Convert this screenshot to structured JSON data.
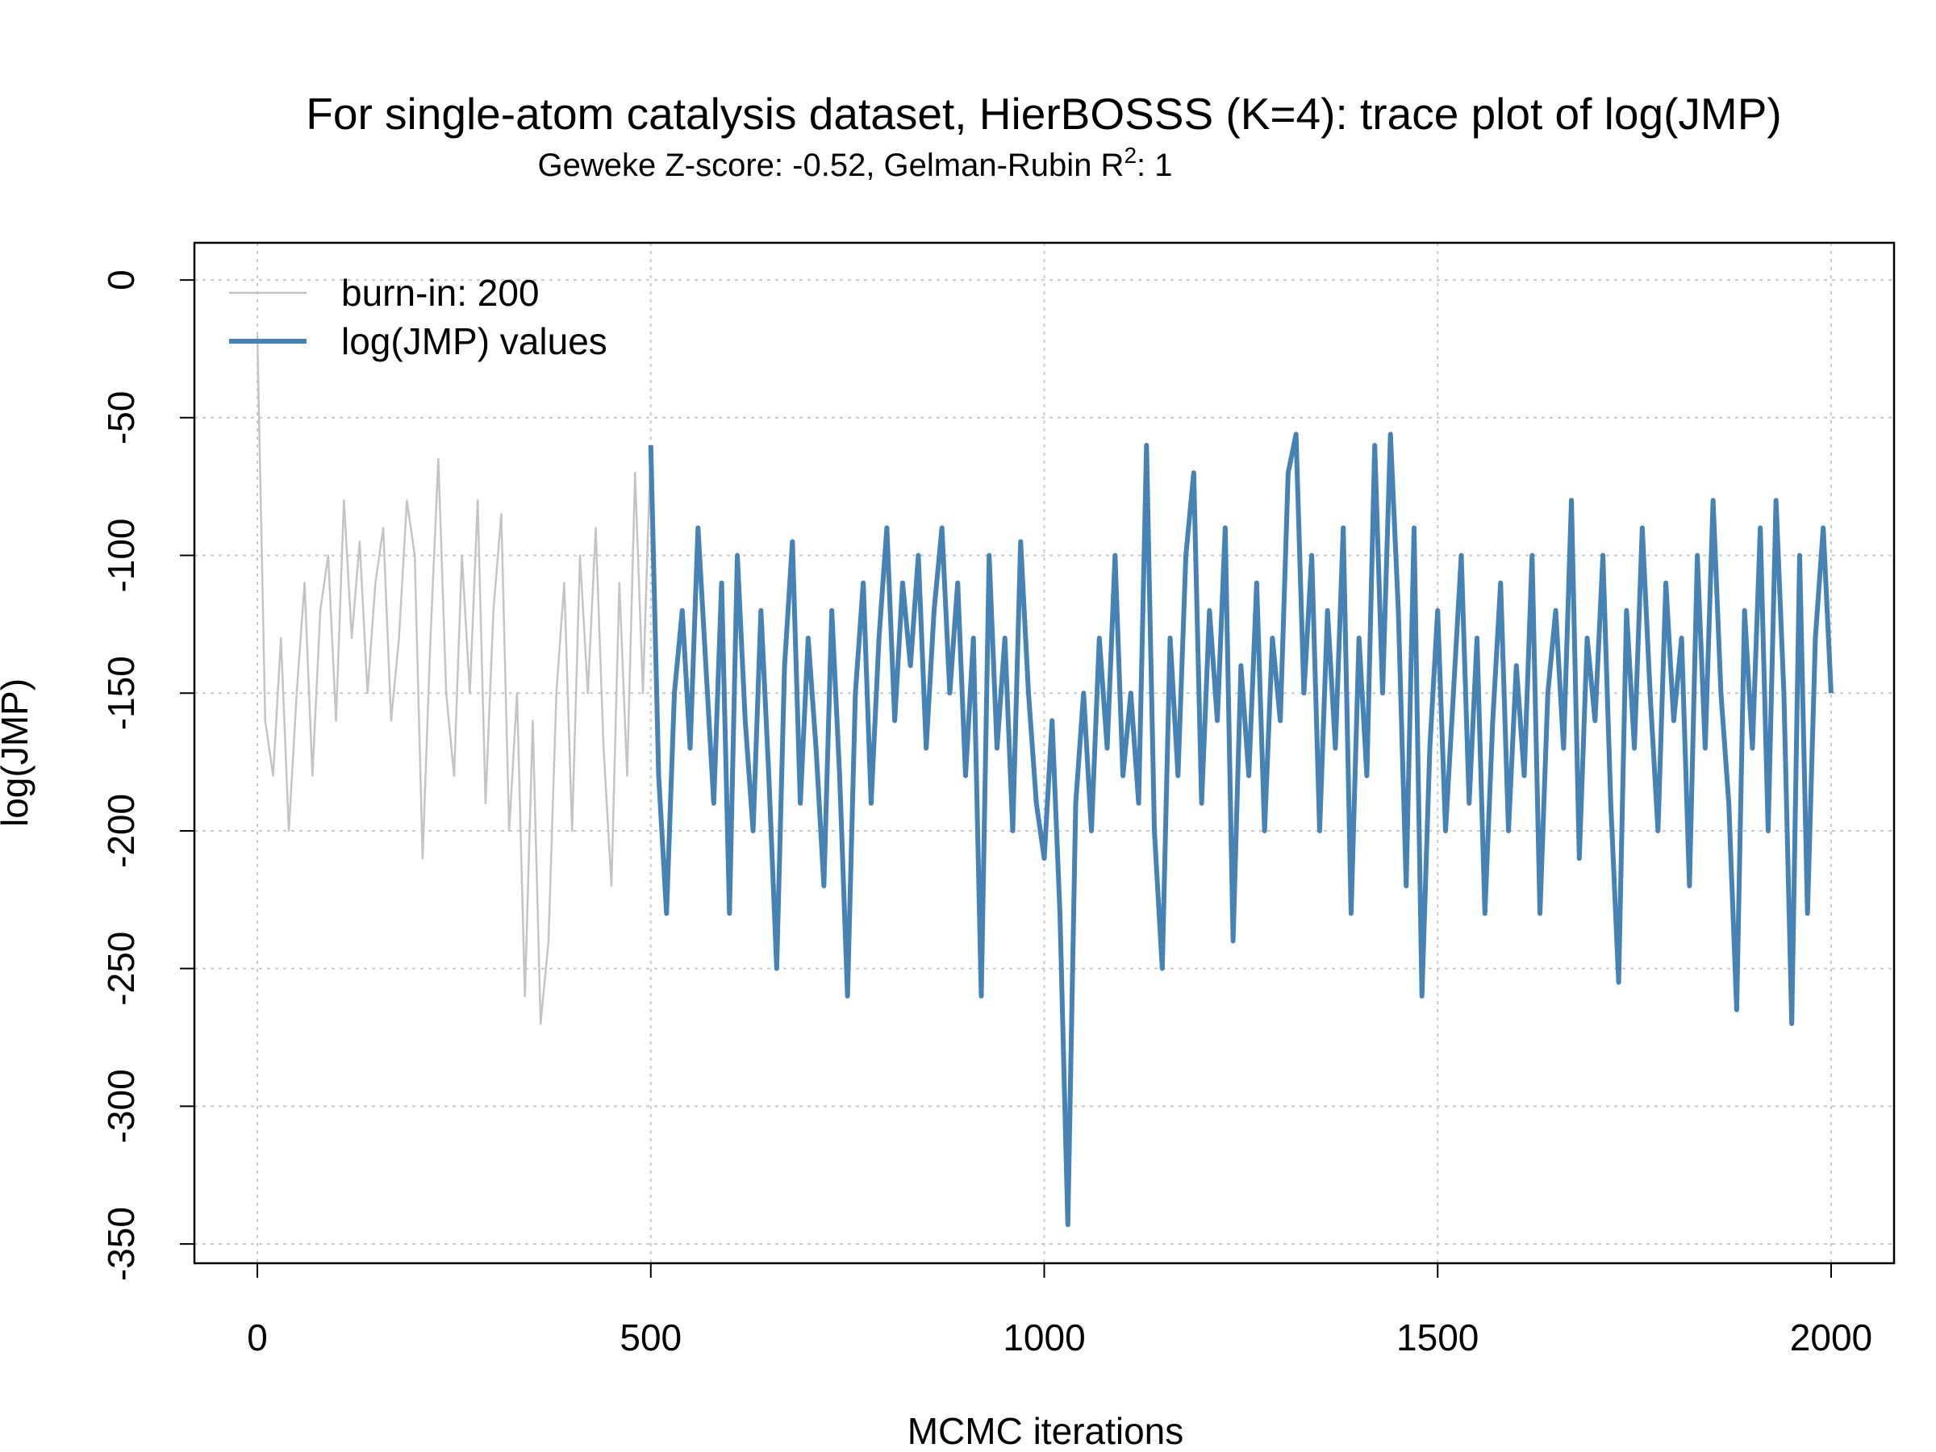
{
  "chart_data": {
    "type": "line",
    "title": "For single-atom catalysis dataset, HierBOSSS (K=4): trace plot of log(JMP)",
    "subtitle_parts": [
      "Geweke Z-score: -0.52,  Gelman-Rubin R",
      "2",
      ": 1"
    ],
    "x_label": "MCMC iterations",
    "y_label": "log(JMP)",
    "xlim": [
      -80,
      2080
    ],
    "ylim": [
      -357,
      13.5
    ],
    "xticks": [
      0,
      500,
      1000,
      1500,
      2000
    ],
    "yticks": [
      0,
      -50,
      -100,
      -150,
      -200,
      -250,
      -300,
      -350
    ],
    "grid": true,
    "legend": "top-left",
    "series": [
      {
        "name": "burn-in: 200",
        "color": "#c4c4c4",
        "x": [
          0,
          10,
          20,
          30,
          40,
          50,
          60,
          70,
          80,
          90,
          100,
          110,
          120,
          130,
          140,
          150,
          160,
          170,
          180,
          190,
          200,
          210,
          220,
          230,
          240,
          250,
          260,
          270,
          280,
          290,
          300,
          310,
          320,
          330,
          340,
          350,
          360,
          370,
          380,
          390,
          400,
          410,
          420,
          430,
          440,
          450,
          460,
          470,
          480,
          490,
          500
        ],
        "values": [
          -20,
          -160,
          -180,
          -130,
          -200,
          -150,
          -110,
          -180,
          -120,
          -100,
          -160,
          -80,
          -130,
          -95,
          -150,
          -110,
          -90,
          -160,
          -130,
          -80,
          -100,
          -210,
          -130,
          -65,
          -150,
          -180,
          -100,
          -150,
          -80,
          -190,
          -120,
          -85,
          -200,
          -150,
          -260,
          -160,
          -270,
          -240,
          -150,
          -110,
          -200,
          -100,
          -150,
          -90,
          -170,
          -220,
          -110,
          -180,
          -70,
          -150,
          -60
        ]
      },
      {
        "name": "log(JMP) values",
        "color": "#4682b4",
        "x": [
          500,
          510,
          520,
          530,
          540,
          550,
          560,
          570,
          580,
          590,
          600,
          610,
          620,
          630,
          640,
          650,
          660,
          670,
          680,
          690,
          700,
          710,
          720,
          730,
          740,
          750,
          760,
          770,
          780,
          790,
          800,
          810,
          820,
          830,
          840,
          850,
          860,
          870,
          880,
          890,
          900,
          910,
          920,
          930,
          940,
          950,
          960,
          970,
          980,
          990,
          1000,
          1010,
          1020,
          1030,
          1040,
          1050,
          1060,
          1070,
          1080,
          1090,
          1100,
          1110,
          1120,
          1130,
          1140,
          1150,
          1160,
          1170,
          1180,
          1190,
          1200,
          1210,
          1220,
          1230,
          1240,
          1250,
          1260,
          1270,
          1280,
          1290,
          1300,
          1310,
          1320,
          1330,
          1340,
          1350,
          1360,
          1370,
          1380,
          1390,
          1400,
          1410,
          1420,
          1430,
          1440,
          1450,
          1460,
          1470,
          1480,
          1490,
          1500,
          1510,
          1520,
          1530,
          1540,
          1550,
          1560,
          1570,
          1580,
          1590,
          1600,
          1610,
          1620,
          1630,
          1640,
          1650,
          1660,
          1670,
          1680,
          1690,
          1700,
          1710,
          1720,
          1730,
          1740,
          1750,
          1760,
          1770,
          1780,
          1790,
          1800,
          1810,
          1820,
          1830,
          1840,
          1850,
          1860,
          1870,
          1880,
          1890,
          1900,
          1910,
          1920,
          1930,
          1940,
          1950,
          1960,
          1970,
          1980,
          1990,
          2000
        ],
        "values": [
          -60,
          -180,
          -230,
          -150,
          -120,
          -170,
          -90,
          -140,
          -190,
          -110,
          -230,
          -100,
          -160,
          -200,
          -120,
          -180,
          -250,
          -140,
          -95,
          -190,
          -130,
          -170,
          -220,
          -120,
          -180,
          -260,
          -150,
          -110,
          -190,
          -130,
          -90,
          -160,
          -110,
          -140,
          -100,
          -170,
          -120,
          -90,
          -150,
          -110,
          -180,
          -130,
          -260,
          -100,
          -170,
          -130,
          -200,
          -95,
          -150,
          -190,
          -210,
          -160,
          -230,
          -343,
          -190,
          -150,
          -200,
          -130,
          -170,
          -100,
          -180,
          -150,
          -190,
          -60,
          -200,
          -250,
          -130,
          -180,
          -100,
          -70,
          -190,
          -120,
          -160,
          -90,
          -240,
          -140,
          -180,
          -110,
          -200,
          -130,
          -160,
          -70,
          -56,
          -150,
          -100,
          -200,
          -120,
          -170,
          -90,
          -230,
          -130,
          -180,
          -60,
          -150,
          -56,
          -120,
          -220,
          -90,
          -260,
          -170,
          -120,
          -200,
          -150,
          -100,
          -190,
          -130,
          -230,
          -160,
          -110,
          -200,
          -140,
          -180,
          -100,
          -230,
          -150,
          -120,
          -170,
          -80,
          -210,
          -130,
          -160,
          -100,
          -190,
          -255,
          -120,
          -170,
          -90,
          -150,
          -200,
          -110,
          -160,
          -130,
          -220,
          -100,
          -170,
          -80,
          -150,
          -190,
          -265,
          -120,
          -170,
          -90,
          -200,
          -80,
          -150,
          -270,
          -100,
          -230,
          -130,
          -90,
          -150
        ]
      }
    ]
  }
}
